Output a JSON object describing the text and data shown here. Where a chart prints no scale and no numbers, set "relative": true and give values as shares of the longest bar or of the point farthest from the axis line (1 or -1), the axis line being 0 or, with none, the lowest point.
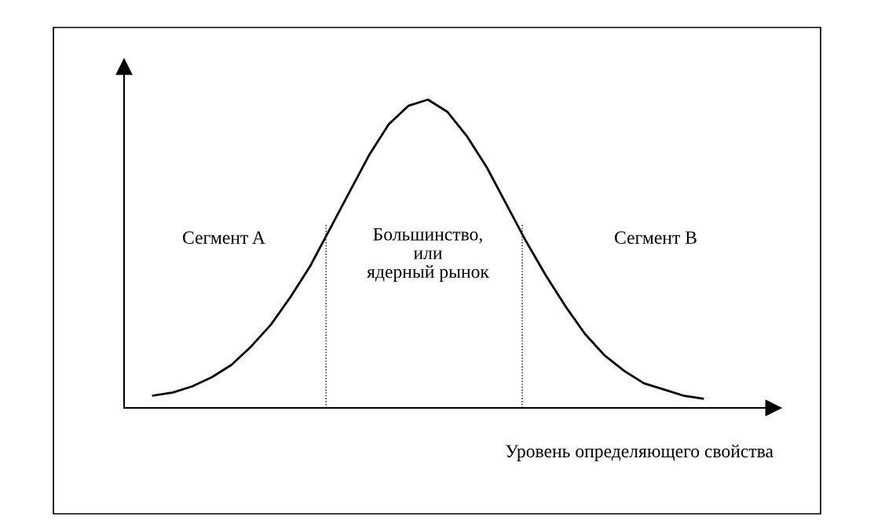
{
  "chart_data": {
    "type": "line",
    "relative": true,
    "xlabel": "Уровень определяющего свойства",
    "categories": [
      null,
      null,
      null,
      null,
      null,
      null,
      null,
      null,
      null,
      null,
      null,
      null,
      null,
      null,
      null,
      null,
      null,
      null,
      null,
      null,
      null,
      null,
      null,
      null,
      null,
      null,
      null,
      null,
      null
    ],
    "series": [
      {
        "color": "#000000",
        "values": [
          0.04,
          0.05,
          0.07,
          0.1,
          0.14,
          0.2,
          0.27,
          0.36,
          0.46,
          0.58,
          0.7,
          0.82,
          0.92,
          0.98,
          1.0,
          0.96,
          0.88,
          0.78,
          0.66,
          0.54,
          0.43,
          0.33,
          0.24,
          0.17,
          0.12,
          0.08,
          0.06,
          0.04,
          0.03
        ]
      }
    ],
    "annotations": [
      "Сегмент A",
      "Большинство,\nили\nядерный рынок",
      "Сегмент B"
    ],
    "grid": false,
    "legend": false,
    "marker": "none",
    "line_style": "solid"
  }
}
